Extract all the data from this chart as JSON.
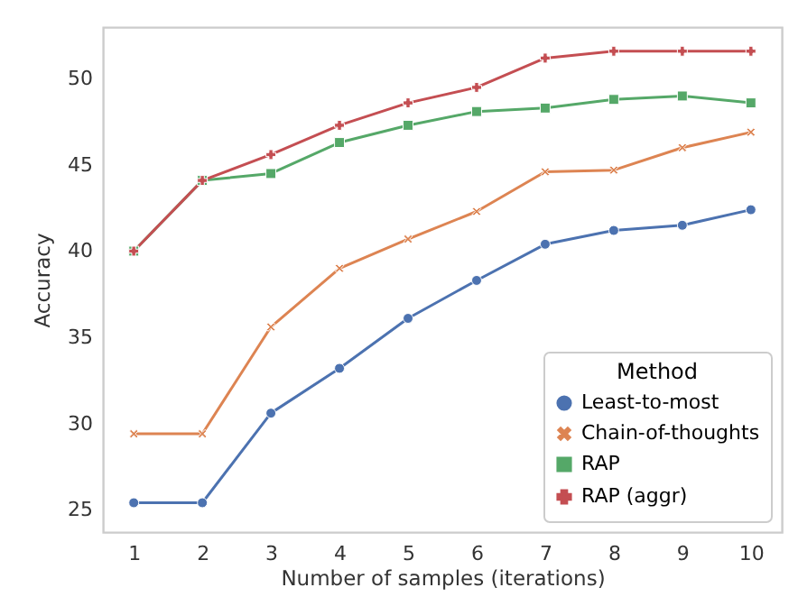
{
  "chart_data": {
    "type": "line",
    "xlabel": "Number of samples (iterations)",
    "ylabel": "Accuracy",
    "legend_title": "Method",
    "legend": "bottom right",
    "grid": false,
    "x": [
      1,
      2,
      3,
      4,
      5,
      6,
      7,
      8,
      9,
      10
    ],
    "xlim": [
      0.55,
      10.45
    ],
    "xticks": [
      1,
      2,
      3,
      4,
      5,
      6,
      7,
      8,
      9,
      10
    ],
    "ylim": [
      23.7,
      53.0
    ],
    "yticks": [
      25,
      30,
      35,
      40,
      45,
      50
    ],
    "series": [
      {
        "name": "Least-to-most",
        "color": "#4c72b0",
        "marker": "circle",
        "values": [
          25.4,
          25.4,
          30.6,
          33.2,
          36.1,
          38.3,
          40.4,
          41.2,
          41.5,
          42.4
        ]
      },
      {
        "name": "Chain-of-thoughts",
        "color": "#dd8452",
        "marker": "cross",
        "values": [
          29.4,
          29.4,
          35.6,
          39.0,
          40.7,
          42.3,
          44.6,
          44.7,
          46.0,
          46.9
        ]
      },
      {
        "name": "RAP",
        "color": "#55a868",
        "marker": "square",
        "values": [
          40.0,
          44.1,
          44.5,
          46.3,
          47.3,
          48.1,
          48.3,
          48.8,
          49.0,
          48.6
        ]
      },
      {
        "name": "RAP (aggr)",
        "color": "#c44e52",
        "marker": "plus",
        "values": [
          40.0,
          44.1,
          45.6,
          47.3,
          48.6,
          49.5,
          51.2,
          51.6,
          51.6,
          51.6
        ]
      }
    ]
  }
}
